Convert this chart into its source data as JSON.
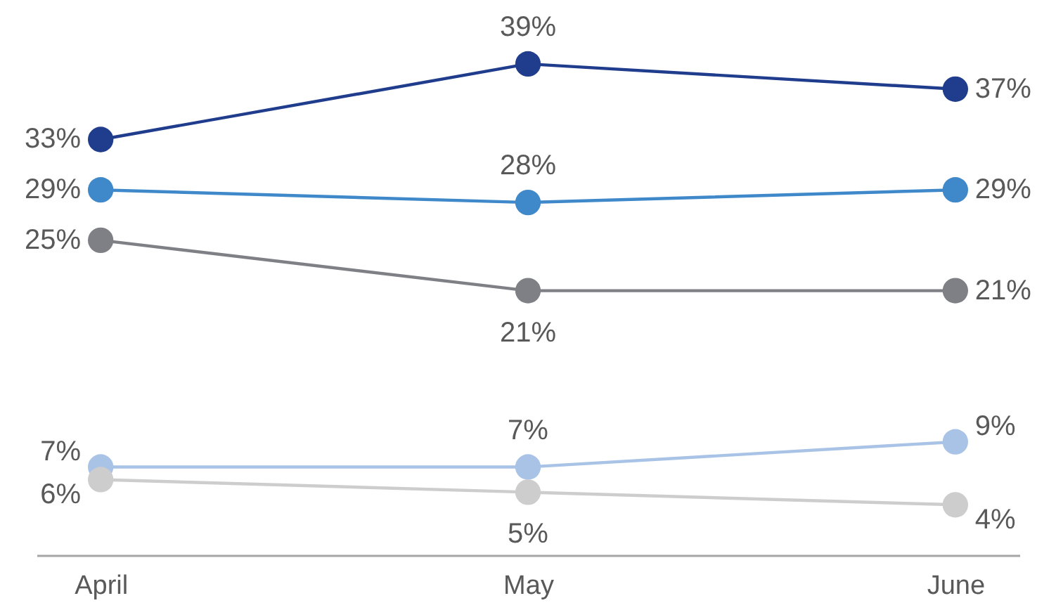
{
  "chart_data": {
    "type": "line",
    "categories": [
      "April",
      "May",
      "June"
    ],
    "marker": "circle",
    "legend": false,
    "grid": false,
    "series": [
      {
        "color": "#1f3d8c",
        "values": [
          33,
          39,
          37
        ],
        "value_labels": [
          "33%",
          "39%",
          "37%"
        ]
      },
      {
        "color": "#3f88c9",
        "values": [
          29,
          28,
          29
        ],
        "value_labels": [
          "29%",
          "28%",
          "29%"
        ]
      },
      {
        "color": "#7f8086",
        "values": [
          25,
          21,
          21
        ],
        "value_labels": [
          "25%",
          "21%",
          "21%"
        ]
      },
      {
        "color": "#a8c3e6",
        "values": [
          7,
          7,
          9
        ],
        "value_labels": [
          "7%",
          "7%",
          "9%"
        ]
      },
      {
        "color": "#cdcdcd",
        "values": [
          6,
          5,
          4
        ],
        "value_labels": [
          "6%",
          "5%",
          "4%"
        ]
      }
    ]
  }
}
